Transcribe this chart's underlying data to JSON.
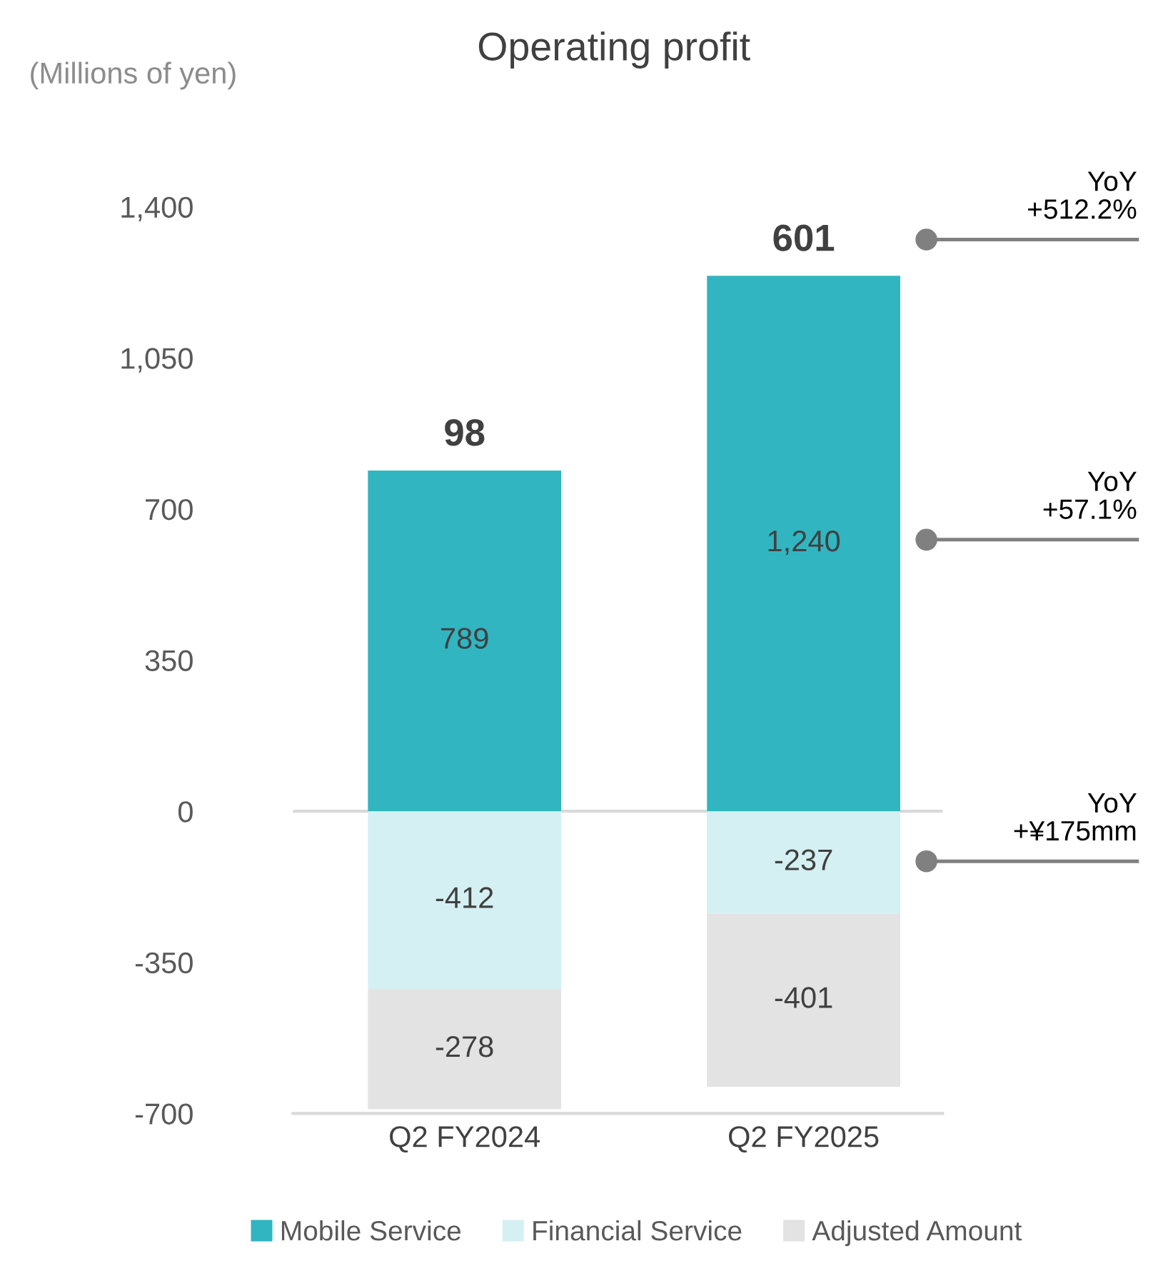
{
  "chart_data": {
    "type": "bar",
    "title": "Operating profit",
    "ylabel": "(Millions of yen)",
    "stacked": true,
    "categories": [
      "Q2 FY2024",
      "Q2 FY2025"
    ],
    "series": [
      {
        "name": "Mobile Service",
        "color": "#31b5c1",
        "values": [
          789,
          1240
        ],
        "value_labels": [
          "789",
          "1,240"
        ]
      },
      {
        "name": "Financial Service",
        "color": "#d4f0f2",
        "values": [
          -412,
          -237
        ],
        "value_labels": [
          "-412",
          "-237"
        ]
      },
      {
        "name": "Adjusted Amount",
        "color": "#e3e3e3",
        "values": [
          -278,
          -401
        ],
        "value_labels": [
          "-278",
          "-401"
        ]
      }
    ],
    "ylim": [
      -700,
      1400
    ],
    "yticks": [
      {
        "value": -700,
        "label": "-700"
      },
      {
        "value": -350,
        "label": "-350"
      },
      0,
      350,
      700,
      {
        "value": 1050,
        "label": "1,050"
      },
      {
        "value": 1400,
        "label": "1,400"
      }
    ],
    "totals": [
      "98",
      "601"
    ],
    "ref_lines": [
      {
        "axis": "y",
        "value": 0,
        "color": "#d9d9d9"
      }
    ],
    "annotations": [
      "YoY\n+512.2%",
      "YoY\n+57.1%",
      "YoY\n+¥175mm"
    ],
    "grid": false,
    "legend": "bottom"
  }
}
